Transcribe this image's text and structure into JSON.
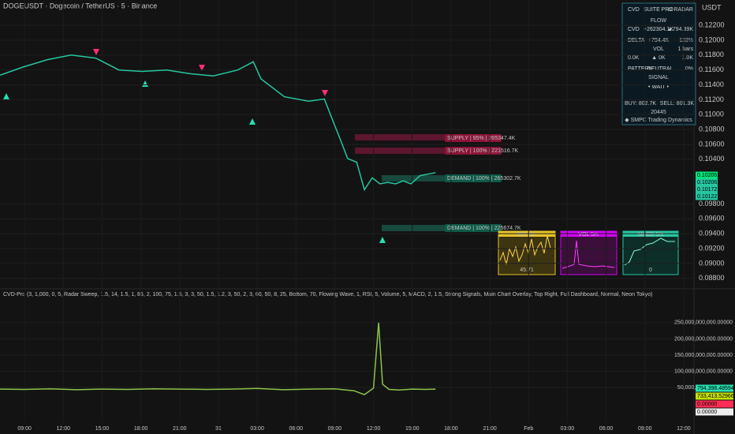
{
  "chart_data": [
    {
      "type": "line",
      "title": "DOGEUSDT · Dogecoin / TetherUS · 5 · Binance",
      "x": [
        7.1,
        8.9,
        10.8,
        12.6,
        14.5,
        16.3,
        18.1,
        20.0,
        21.8,
        23.6,
        25.5,
        26.7,
        27.3,
        29.1,
        31.0,
        32.2,
        32.8,
        33.4,
        34.0,
        34.7,
        35.3,
        35.9,
        36.5,
        37.1,
        37.7,
        38.3,
        38.9,
        39.6,
        40.8
      ],
      "values": [
        0.1153,
        0.1164,
        0.1174,
        0.118,
        0.1176,
        0.116,
        0.1158,
        0.116,
        0.1155,
        0.1152,
        0.116,
        0.1171,
        0.1148,
        0.1124,
        0.1118,
        0.1121,
        0.1094,
        0.1068,
        0.1041,
        0.1036,
        0.0999,
        0.1015,
        0.1007,
        0.1009,
        0.1007,
        0.1011,
        0.1007,
        0.1018,
        0.1022
      ],
      "color": "#26c6a0",
      "xlim": [
        7.1,
        60.8
      ],
      "ylim": [
        0.0867,
        0.1254
      ],
      "yticks": [
        {
          "value": 0.122,
          "label": "0.12200"
        },
        {
          "value": 0.12,
          "label": "0.12000"
        },
        {
          "value": 0.118,
          "label": "0.11800"
        },
        {
          "value": 0.116,
          "label": "0.11600"
        },
        {
          "value": 0.114,
          "label": "0.11400"
        },
        {
          "value": 0.112,
          "label": "0.11200"
        },
        {
          "value": 0.11,
          "label": "0.11000"
        },
        {
          "value": 0.108,
          "label": "0.10800"
        },
        {
          "value": 0.106,
          "label": "0.10600"
        },
        {
          "value": 0.104,
          "label": "0.10400"
        },
        {
          "value": 0.098,
          "label": "0.09800"
        },
        {
          "value": 0.096,
          "label": "0.09600"
        },
        {
          "value": 0.094,
          "label": "0.09400"
        },
        {
          "value": 0.092,
          "label": "0.09200"
        },
        {
          "value": 0.09,
          "label": "0.09000"
        },
        {
          "value": 0.088,
          "label": "0.08800"
        }
      ],
      "grid": true,
      "currency": "USDT",
      "price_badges": [
        "0.10206",
        "0.10206",
        "0.10172",
        "0.10122"
      ]
    },
    {
      "type": "line",
      "title": "CVD-Pro (3, 1,000, 0, 5, Radar Sweep, 1.5, 14, 1.5, 1, 85, 2, 100, 75, 1.5, 3, 3, 50, 1.5, 1.2, 3, 50, 2, 3, 60, 50, 8, 25, Bottom, 70, Flowing Wave, 1, RSI, 5, Volume, 5, MACD, 2, 1.5, Strong Signals, Main Chart Overlay, Top Right, Full Dashboard, Normal, Neon Tokyo)",
      "x": [
        7.1,
        9.0,
        11.0,
        13.0,
        15.0,
        17.0,
        19.0,
        21.0,
        23.0,
        25.0,
        27.0,
        29.0,
        31.0,
        33.0,
        34.5,
        35.3,
        36.0,
        36.4,
        36.7,
        37.2,
        38.0,
        39.0,
        40.0,
        40.8
      ],
      "values": [
        45000000000,
        44000000000,
        46000000000,
        43000000000,
        45000000000,
        44000000000,
        46000000000,
        45000000000,
        44000000000,
        45000000000,
        47000000000,
        43000000000,
        45000000000,
        46000000000,
        40000000000,
        28000000000,
        48000000000,
        250000000000,
        60000000000,
        44000000000,
        42000000000,
        45000000000,
        44000000000,
        45000000000
      ],
      "color": "#8bc34a",
      "xlim": [
        7.1,
        60.8
      ],
      "ylim": [
        -57000000000,
        352000000000
      ],
      "yticks": [
        {
          "value": 250000000000,
          "label": "250,000,000,000.00000"
        },
        {
          "value": 200000000000,
          "label": "200,000,000,000.00000"
        },
        {
          "value": 150000000000,
          "label": "150,000,000,000.00000"
        },
        {
          "value": 100000000000,
          "label": "100,000,000,000.00000"
        },
        {
          "value": 50000000000,
          "label": "50,000,000,000.00000"
        }
      ],
      "xticks": [
        {
          "value": 9,
          "label": "09:00"
        },
        {
          "value": 12,
          "label": "12:00"
        },
        {
          "value": 15,
          "label": "15:00"
        },
        {
          "value": 18,
          "label": "18:00"
        },
        {
          "value": 21,
          "label": "21:00"
        },
        {
          "value": 24,
          "label": "31"
        },
        {
          "value": 27,
          "label": "03:00"
        },
        {
          "value": 30,
          "label": "06:00"
        },
        {
          "value": 33,
          "label": "09:00"
        },
        {
          "value": 36,
          "label": "12:00"
        },
        {
          "value": 39,
          "label": "15:00"
        },
        {
          "value": 42,
          "label": "18:00"
        },
        {
          "value": 45,
          "label": "21:00"
        },
        {
          "value": 48,
          "label": "Feb"
        },
        {
          "value": 51,
          "label": "03:00"
        },
        {
          "value": 54,
          "label": "06:00"
        },
        {
          "value": 57,
          "label": "09:00"
        },
        {
          "value": 60,
          "label": "12:00"
        }
      ],
      "grid": true,
      "badges": [
        "794,398.48594",
        "733,413.52966",
        "0.00000",
        "0.00000"
      ]
    }
  ],
  "dashboard": {
    "brand": "CVD",
    "title": "SUITE PRO",
    "mode": "⊙ RADAR",
    "flow": "FLOW",
    "cvd_label": "CVD",
    "cvd_value": "+262304.1K",
    "cvd_change": "▲794.39K",
    "delta_label": "DELTA",
    "delta_value": "+794.4K",
    "delta_pct": "133%",
    "vol": "VOL",
    "vol_bars": "1 bars",
    "vol_a": "0.0K",
    "vol_b": "▲ 0K",
    "vol_c": "1.0K",
    "pattern_label": "PATTERN",
    "pattern_value": "• NEUTRAL",
    "pattern_pct": "0%",
    "signal": "SIGNAL",
    "signal_value": "• WAIT •",
    "buy": "BUY: 802.7K",
    "sell": "SELL: 801.3K",
    "count": "20445",
    "footer": "◆ SMPC Trading Dynamics"
  },
  "zones": [
    "SUPPLY | 95% | 265347.4K",
    "SUPPLY | 100% | 221516.7K",
    "DEMAND | 100% | 265302.7K",
    "DEMAND | 100% | 225674.7K"
  ],
  "panels": {
    "rsi": "RSI 5m",
    "rsi_value": "45.71",
    "vol": "VOL 5m",
    "macd": "MACD 5m",
    "macd_value": "0"
  }
}
